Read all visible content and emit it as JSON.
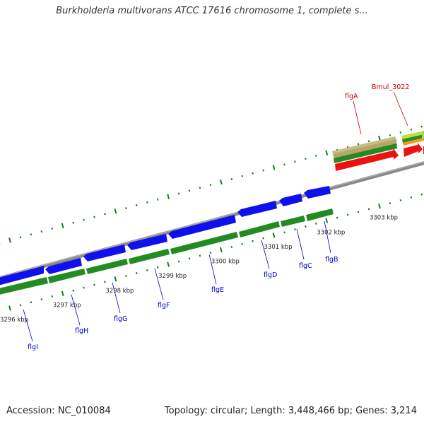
{
  "title": "Burkholderia multivorans ATCC 17616 chromosome 1, complete s...",
  "footer": {
    "accession": "Accession: NC_010084",
    "topology": "Topology: circular; Length: 3,448,466 bp; Genes: 3,214"
  },
  "colors": {
    "backbone": "#888888",
    "cds": "#1010ee",
    "gene": "#228b22",
    "cds_highlight": "#ee1111",
    "gene_highlight": "#b5a66b",
    "tick": "#1a7a1a",
    "label_blue": "#0000cc",
    "label_red": "#cc0000"
  },
  "ruler": {
    "tick_labels": [
      "3296 kbp",
      "3297 kbp",
      "3298 kbp",
      "3299 kbp",
      "3300 kbp",
      "3301 kbp",
      "3302 kbp",
      "3303 kbp"
    ]
  },
  "genes": [
    {
      "name": "flgI",
      "color": "blue"
    },
    {
      "name": "flgH",
      "color": "blue"
    },
    {
      "name": "flgG",
      "color": "blue"
    },
    {
      "name": "flgF",
      "color": "blue"
    },
    {
      "name": "flgE",
      "color": "blue"
    },
    {
      "name": "flgD",
      "color": "blue"
    },
    {
      "name": "flgC",
      "color": "blue"
    },
    {
      "name": "flgB",
      "color": "blue"
    },
    {
      "name": "flgA",
      "color": "red"
    },
    {
      "name": "Bmul_3022",
      "color": "red"
    }
  ]
}
